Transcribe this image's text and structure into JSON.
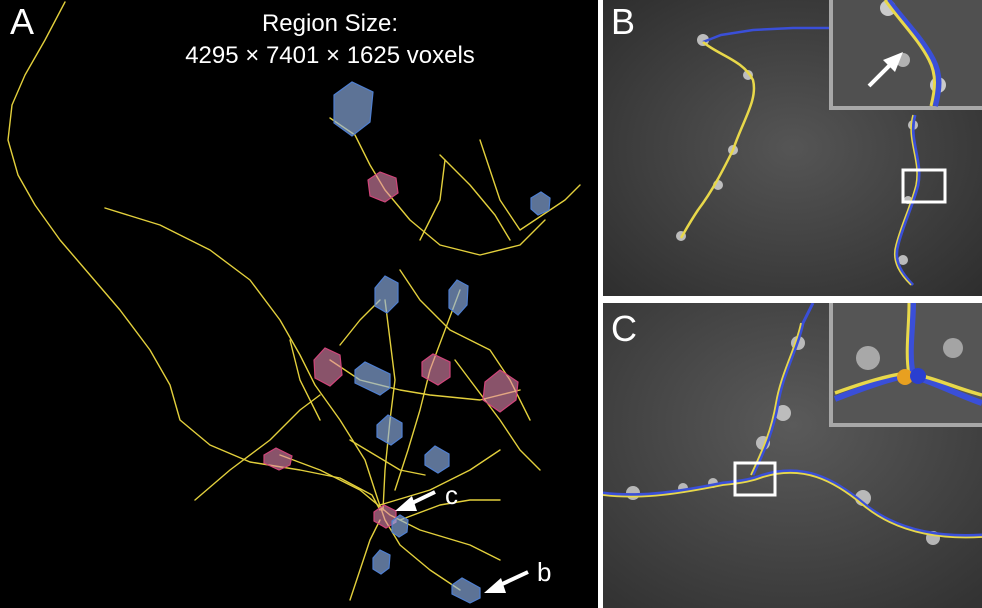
{
  "panel_a": {
    "letter": "A",
    "title_line1": "Region Size:",
    "title_line2": "4295 × 7401 × 1625 voxels",
    "arrow_c_label": "c",
    "arrow_b_label": "b"
  },
  "panel_b": {
    "letter": "B"
  },
  "panel_c": {
    "letter": "C"
  },
  "colors": {
    "trace_yellow": "#e8d84a",
    "trace_blue": "#3a4fd8",
    "box_blue": "#7fa6e0",
    "box_pink": "#e07aa0",
    "background": "#000000"
  }
}
